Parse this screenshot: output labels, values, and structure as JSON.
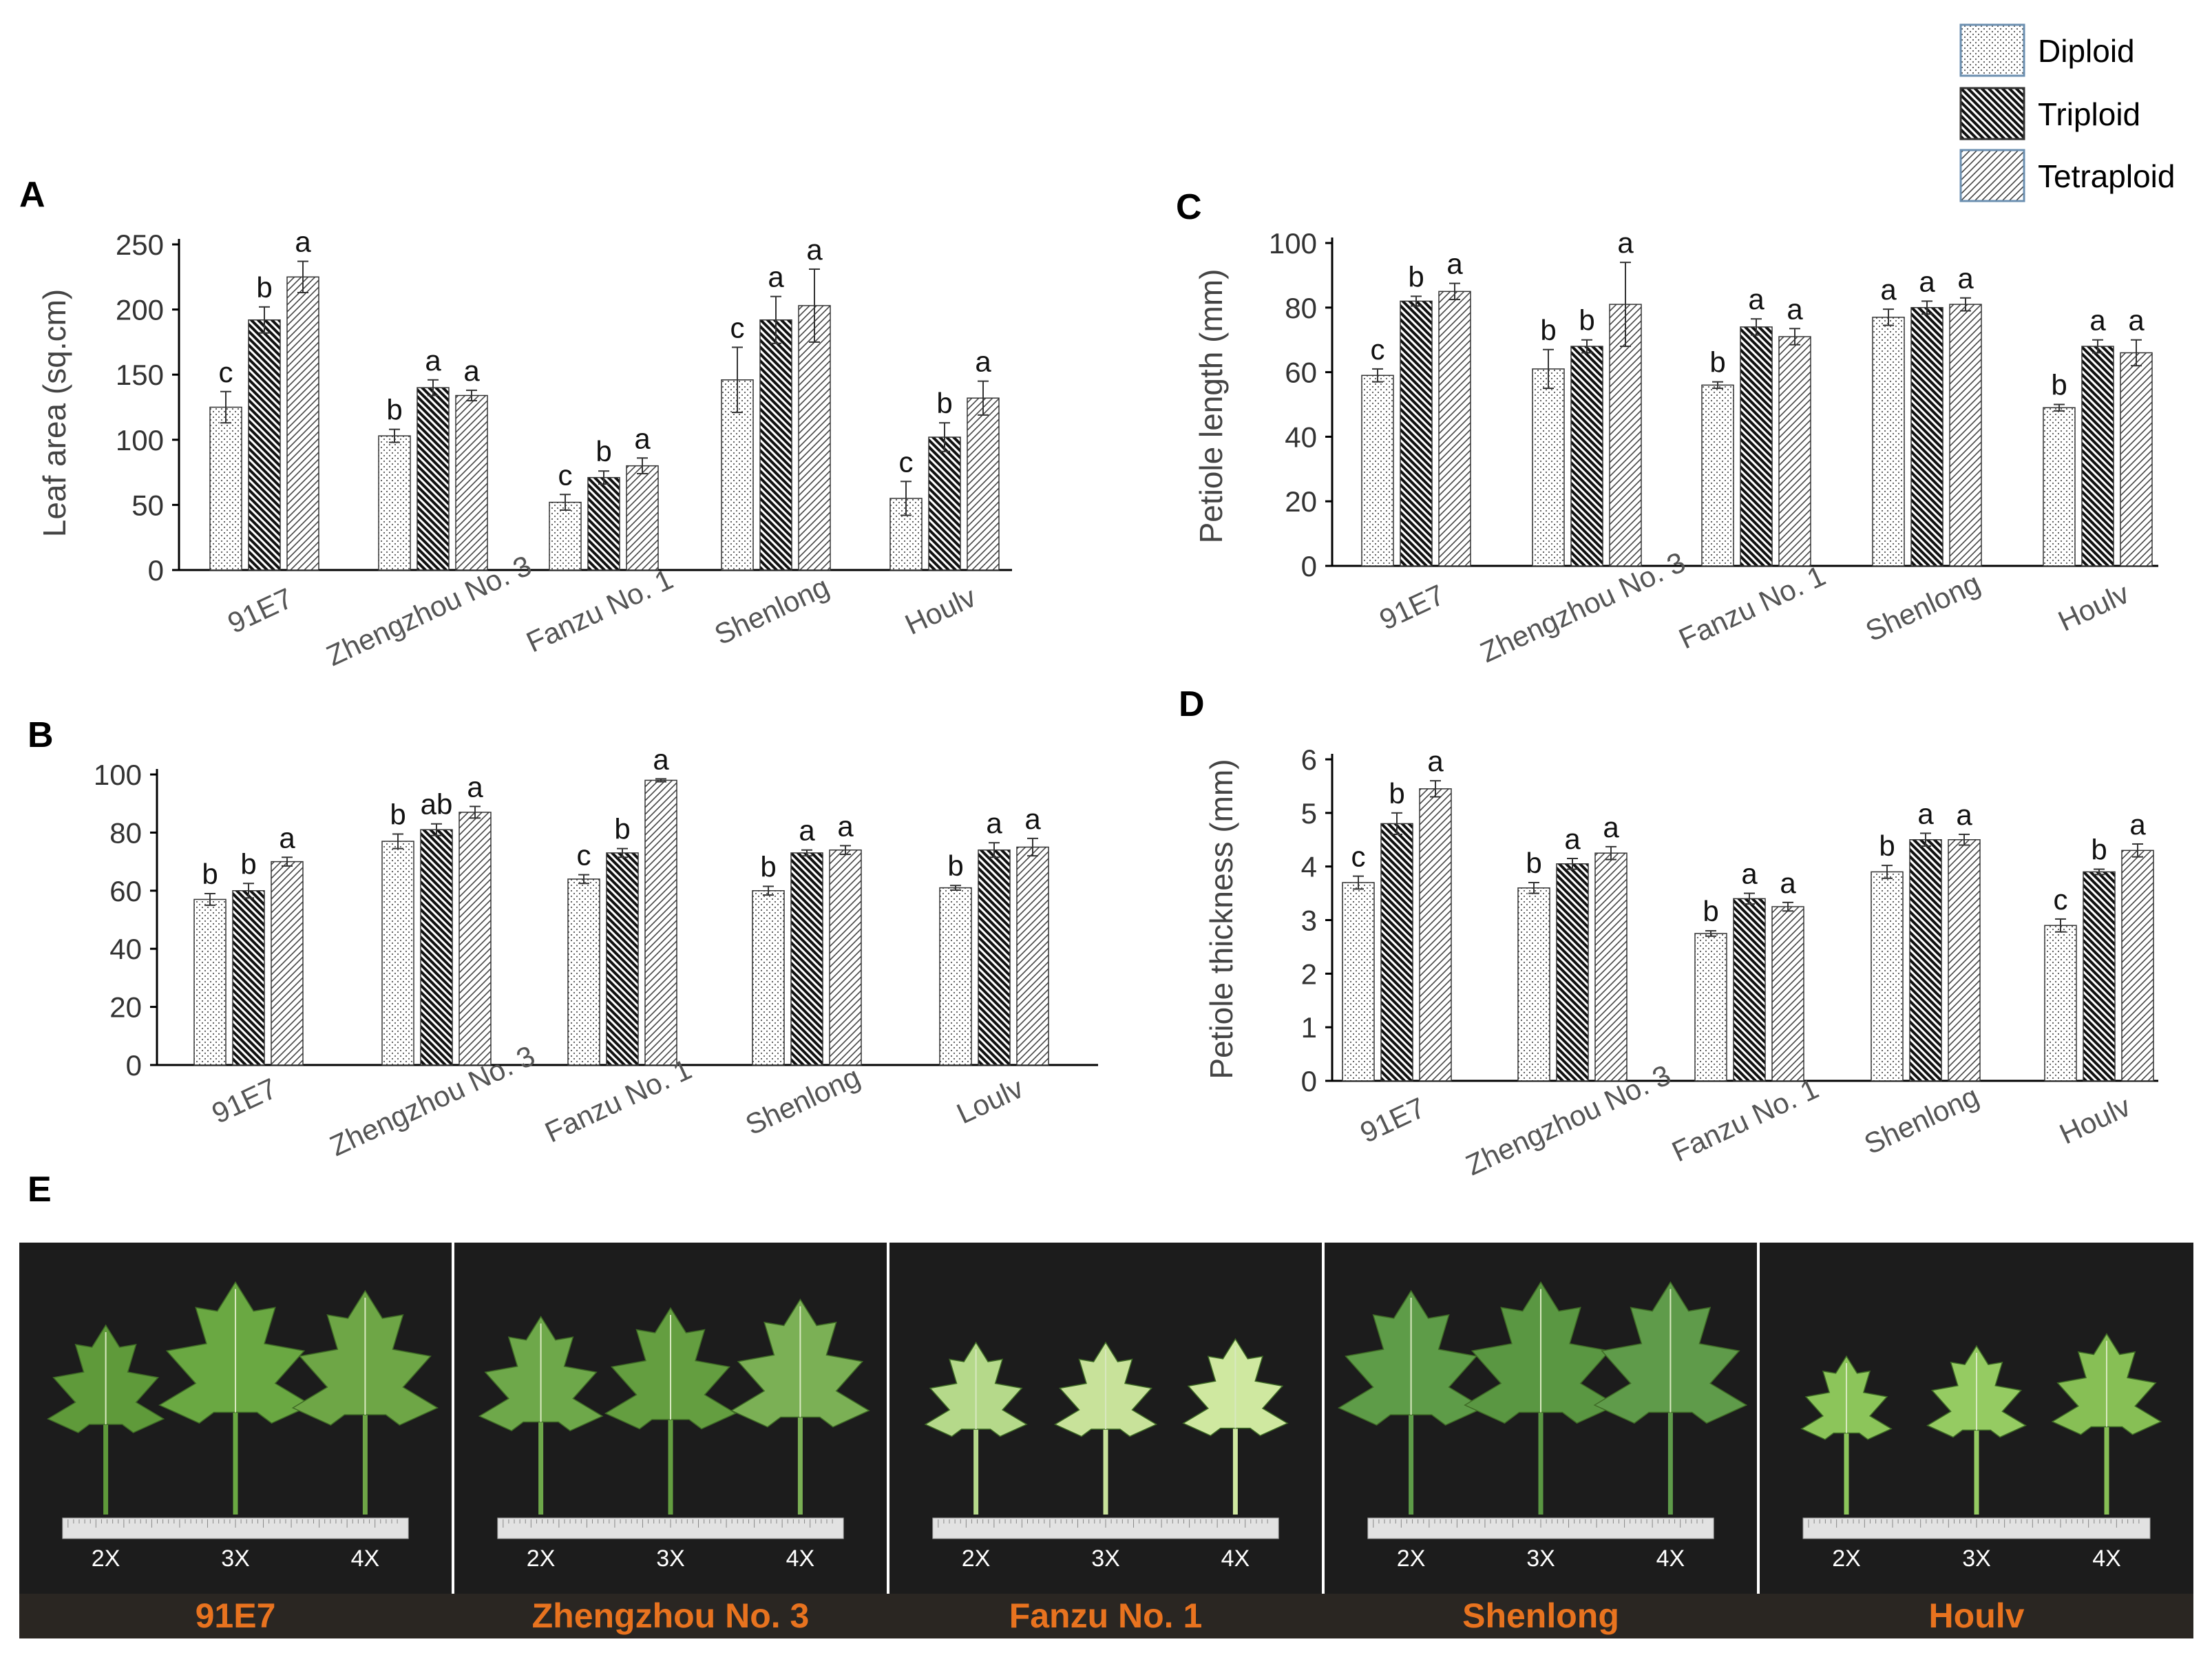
{
  "figure": {
    "panel_labels": [
      "A",
      "B",
      "C",
      "D",
      "E"
    ]
  },
  "legend": {
    "entries": [
      "Diploid",
      "Triploid",
      "Tetraploid"
    ]
  },
  "chart_data": [
    {
      "id": "A",
      "type": "bar",
      "title": "",
      "xlabel": "",
      "ylabel": "Leaf area (sq.cm)",
      "ylim": [
        0,
        250
      ],
      "yticks": [
        0,
        50,
        100,
        150,
        200,
        250
      ],
      "categories": [
        "91E7",
        "Zhengzhou No. 3",
        "Fanzu No. 1",
        "Shenlong",
        "Houlv"
      ],
      "series": [
        {
          "name": "Diploid",
          "values": [
            125,
            103,
            52,
            146,
            55
          ],
          "errors": [
            12,
            5,
            6,
            25,
            13
          ],
          "letters": [
            "c",
            "b",
            "c",
            "c",
            "c"
          ]
        },
        {
          "name": "Triploid",
          "values": [
            192,
            140,
            71,
            192,
            102
          ],
          "errors": [
            10,
            6,
            5,
            18,
            11
          ],
          "letters": [
            "b",
            "a",
            "b",
            "a",
            "b"
          ]
        },
        {
          "name": "Tetraploid",
          "values": [
            225,
            134,
            80,
            203,
            132
          ],
          "errors": [
            12,
            4,
            6,
            28,
            13
          ],
          "letters": [
            "a",
            "a",
            "a",
            "a",
            "a"
          ]
        }
      ]
    },
    {
      "id": "B",
      "type": "bar",
      "title": "",
      "xlabel": "",
      "ylabel": "",
      "ylim": [
        0,
        100
      ],
      "yticks": [
        0,
        20,
        40,
        60,
        80,
        100
      ],
      "categories": [
        "91E7",
        "Zhengzhou No. 3",
        "Fanzu No. 1",
        "Shenlong",
        "Loulv"
      ],
      "series": [
        {
          "name": "Diploid",
          "values": [
            57,
            77,
            64,
            60,
            61
          ],
          "errors": [
            2,
            2.5,
            1.5,
            1.5,
            0.8
          ],
          "letters": [
            "b",
            "b",
            "c",
            "b",
            "b"
          ]
        },
        {
          "name": "Triploid",
          "values": [
            60,
            81,
            73,
            73,
            74
          ],
          "errors": [
            2.5,
            2,
            1.5,
            1,
            2.5
          ],
          "letters": [
            "b",
            "ab",
            "b",
            "a",
            "a"
          ]
        },
        {
          "name": "Tetraploid",
          "values": [
            70,
            87,
            98,
            74,
            75
          ],
          "errors": [
            1.5,
            2,
            0.5,
            1.5,
            3
          ],
          "letters": [
            "a",
            "a",
            "a",
            "a",
            "a"
          ]
        }
      ]
    },
    {
      "id": "C",
      "type": "bar",
      "title": "",
      "xlabel": "",
      "ylabel": "Petiole length (mm)",
      "ylim": [
        0,
        100
      ],
      "yticks": [
        0,
        20,
        40,
        60,
        80,
        100
      ],
      "categories": [
        "91E7",
        "Zhengzhou No. 3",
        "Fanzu No. 1",
        "Shenlong",
        "Houlv"
      ],
      "series": [
        {
          "name": "Diploid",
          "values": [
            59,
            61,
            56,
            77,
            49
          ],
          "errors": [
            2,
            6,
            1,
            2.5,
            1
          ],
          "letters": [
            "c",
            "b",
            "b",
            "a",
            "b"
          ]
        },
        {
          "name": "Triploid",
          "values": [
            82,
            68,
            74,
            80,
            68
          ],
          "errors": [
            1.5,
            2,
            2.5,
            2,
            2
          ],
          "letters": [
            "b",
            "b",
            "a",
            "a",
            "a"
          ]
        },
        {
          "name": "Tetraploid",
          "values": [
            85,
            81,
            71,
            81,
            66
          ],
          "errors": [
            2.5,
            13,
            2.5,
            2,
            4
          ],
          "letters": [
            "a",
            "a",
            "a",
            "a",
            "a"
          ]
        }
      ]
    },
    {
      "id": "D",
      "type": "bar",
      "title": "",
      "xlabel": "",
      "ylabel": "Petiole thickness (mm)",
      "ylim": [
        0,
        6
      ],
      "yticks": [
        0,
        1,
        2,
        3,
        4,
        5,
        6
      ],
      "categories": [
        "91E7",
        "Zhengzhou No. 3",
        "Fanzu No. 1",
        "Shenlong",
        "Houlv"
      ],
      "series": [
        {
          "name": "Diploid",
          "values": [
            3.7,
            3.6,
            2.75,
            3.9,
            2.9
          ],
          "errors": [
            0.12,
            0.1,
            0.05,
            0.12,
            0.12
          ],
          "letters": [
            "c",
            "b",
            "b",
            "b",
            "c"
          ]
        },
        {
          "name": "Triploid",
          "values": [
            4.8,
            4.05,
            3.4,
            4.5,
            3.9
          ],
          "errors": [
            0.2,
            0.1,
            0.1,
            0.12,
            0.05
          ],
          "letters": [
            "b",
            "a",
            "a",
            "a",
            "b"
          ]
        },
        {
          "name": "Tetraploid",
          "values": [
            5.45,
            4.25,
            3.25,
            4.5,
            4.3
          ],
          "errors": [
            0.15,
            0.12,
            0.08,
            0.1,
            0.12
          ],
          "letters": [
            "a",
            "a",
            "a",
            "a",
            "a"
          ]
        }
      ]
    }
  ],
  "photos": {
    "ploidy_labels": [
      "2X",
      "3X",
      "4X"
    ],
    "cultivars": [
      "91E7",
      "Zhengzhou No. 3",
      "Fanzu No. 1",
      "Shenlong",
      "Houlv"
    ],
    "label_color": "#e8731f"
  }
}
